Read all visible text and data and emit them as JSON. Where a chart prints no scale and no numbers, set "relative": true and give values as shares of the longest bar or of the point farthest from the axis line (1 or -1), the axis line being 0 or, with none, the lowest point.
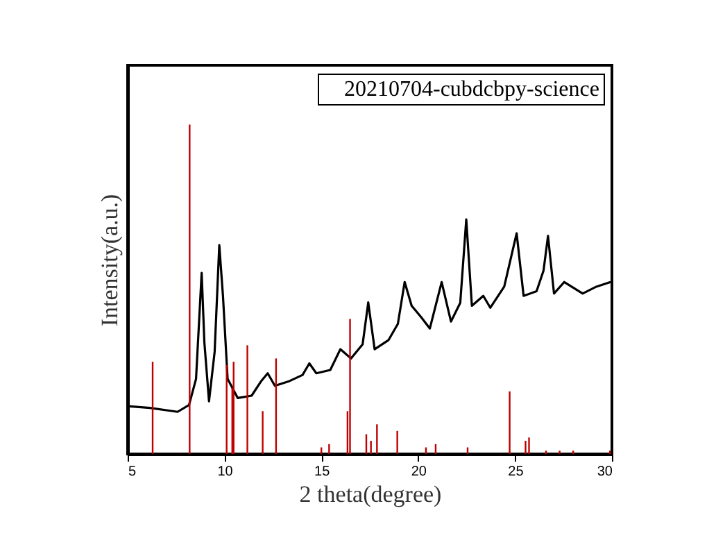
{
  "chart_data": {
    "type": "line",
    "xlabel": "2 theta(degree)",
    "ylabel": "Intensity(a.u.)",
    "relative": true,
    "legend": "top right",
    "xlim": [
      5,
      30
    ],
    "xticks": [
      5,
      10,
      15,
      20,
      25,
      30
    ],
    "grid": false,
    "tick_labels": "x",
    "series": [
      {
        "name": "20210704-cubdcbpy-science",
        "color": "#000000",
        "x": [
          5.0,
          6.15,
          7.58,
          8.17,
          8.53,
          8.82,
          8.96,
          9.2,
          9.49,
          9.73,
          9.92,
          10.16,
          10.68,
          11.4,
          11.88,
          12.23,
          12.6,
          13.3,
          14.03,
          14.38,
          14.74,
          15.46,
          15.98,
          16.53,
          17.13,
          17.42,
          17.75,
          18.47,
          18.95,
          19.3,
          19.66,
          20.14,
          20.6,
          21.21,
          21.69,
          22.17,
          22.48,
          22.77,
          23.36,
          23.72,
          24.44,
          25.08,
          25.44,
          26.11,
          26.47,
          26.7,
          27.01,
          27.54,
          28.49,
          29.2,
          29.93
        ],
        "values": [
          0.145,
          0.14,
          0.128,
          0.149,
          0.228,
          0.55,
          0.339,
          0.16,
          0.31,
          0.634,
          0.48,
          0.228,
          0.17,
          0.177,
          0.22,
          0.245,
          0.207,
          0.22,
          0.24,
          0.275,
          0.245,
          0.255,
          0.318,
          0.29,
          0.333,
          0.46,
          0.318,
          0.346,
          0.395,
          0.522,
          0.45,
          0.416,
          0.381,
          0.522,
          0.402,
          0.459,
          0.712,
          0.45,
          0.48,
          0.444,
          0.508,
          0.67,
          0.48,
          0.494,
          0.557,
          0.662,
          0.487,
          0.522,
          0.487,
          0.508,
          0.522
        ]
      },
      {
        "type": "bar",
        "color": "#c00000",
        "x": [
          6.29,
          8.2,
          10.11,
          10.4,
          10.47,
          11.18,
          11.97,
          12.66,
          15.0,
          15.4,
          16.35,
          16.48,
          17.32,
          17.56,
          17.87,
          18.92,
          20.4,
          20.9,
          22.55,
          24.72,
          25.54,
          25.72,
          26.6,
          27.3,
          28.0,
          29.9
        ],
        "values": [
          0.28,
          1.0,
          0.27,
          0.2,
          0.28,
          0.33,
          0.13,
          0.29,
          0.02,
          0.03,
          0.13,
          0.41,
          0.06,
          0.04,
          0.09,
          0.07,
          0.02,
          0.03,
          0.02,
          0.19,
          0.04,
          0.05,
          0.01,
          0.01,
          0.01,
          0.01
        ]
      }
    ]
  }
}
